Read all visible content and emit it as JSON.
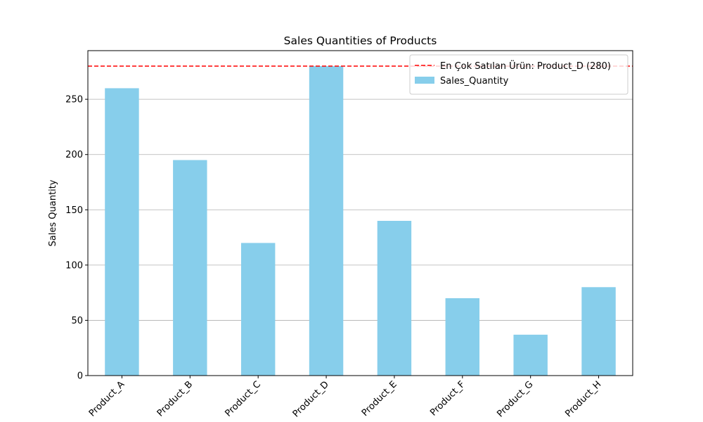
{
  "chart_data": {
    "type": "bar",
    "title": "Sales Quantities of Products",
    "xlabel": "",
    "ylabel": "Sales Quantity",
    "categories": [
      "Product_A",
      "Product_B",
      "Product_C",
      "Product_D",
      "Product_E",
      "Product_F",
      "Product_G",
      "Product_H"
    ],
    "series": [
      {
        "name": "Sales_Quantity",
        "values": [
          260,
          195,
          120,
          280,
          140,
          70,
          37,
          80
        ],
        "color": "#87ceeb"
      }
    ],
    "reference_line": {
      "label": "En Çok Satılan Ürün: Product_D (280)",
      "value": 280,
      "color": "#ff0000",
      "style": "dashed"
    },
    "ylim": [
      0,
      294
    ],
    "yticks": [
      0,
      50,
      100,
      150,
      200,
      250
    ],
    "grid": "y-axis",
    "legend_position": "top-right"
  }
}
